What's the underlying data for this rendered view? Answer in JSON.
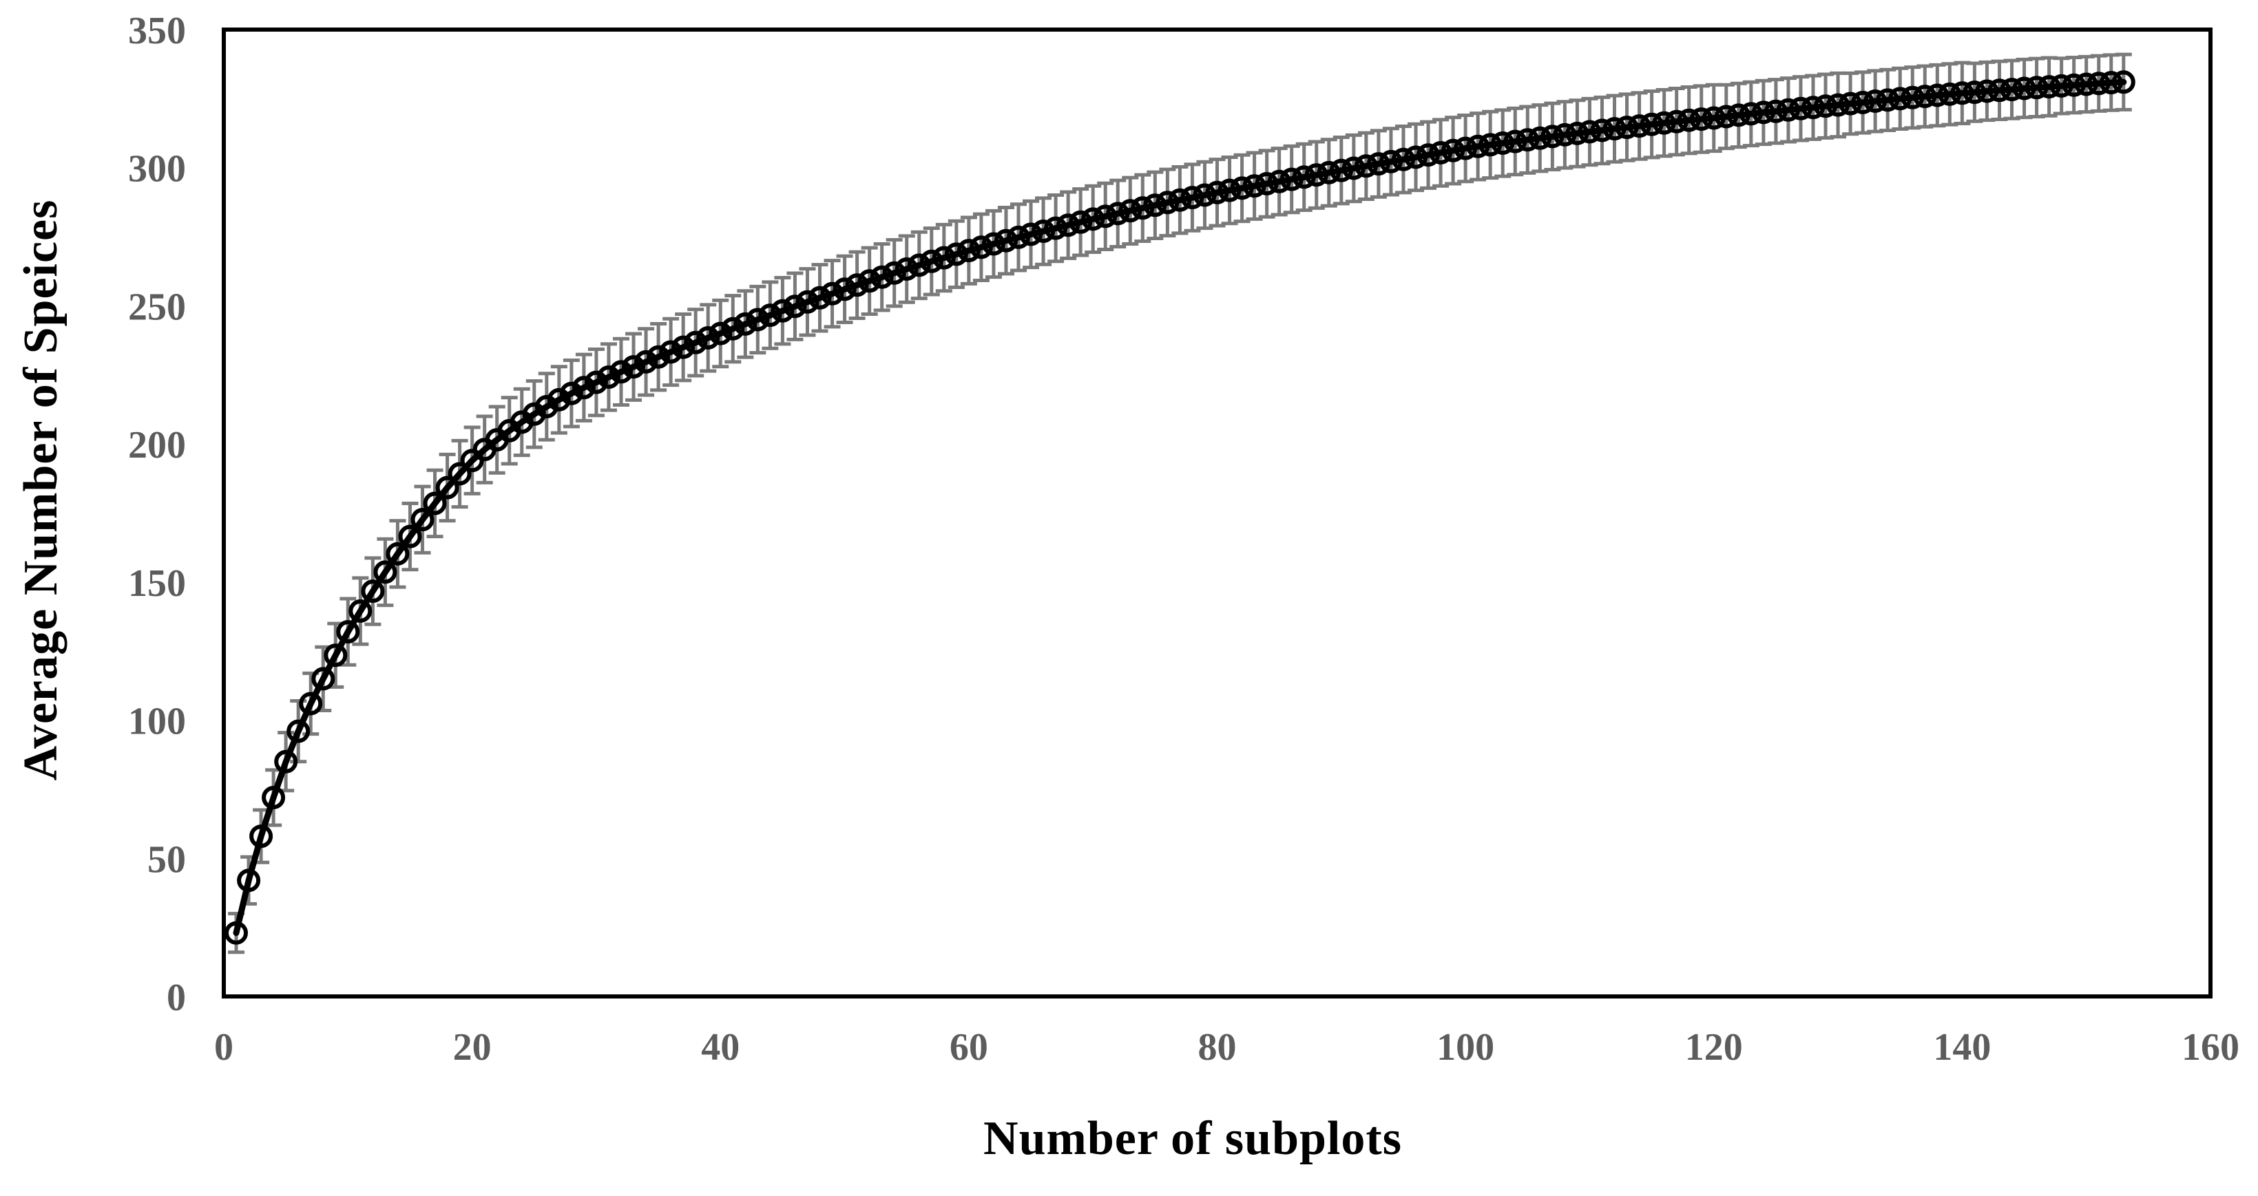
{
  "chart_data": {
    "type": "line",
    "title": "",
    "xlabel": "Number of subplots",
    "ylabel": "Average Number of Speices",
    "xlim": [
      0,
      160
    ],
    "ylim": [
      0,
      350
    ],
    "x_ticks": [
      0,
      20,
      40,
      60,
      80,
      100,
      120,
      140,
      160
    ],
    "y_ticks": [
      0,
      50,
      100,
      150,
      200,
      250,
      300,
      350
    ],
    "grid": false,
    "legend": "none",
    "marker": "open-circle",
    "series_name": "Average number of species",
    "x": {
      "start": 1,
      "step": 1
    },
    "values": [
      23,
      42,
      58,
      72,
      85,
      96,
      106,
      115,
      123.5,
      132,
      139.5,
      146.7,
      153.6,
      160.2,
      166.5,
      172.6,
      178.5,
      184.2,
      189.2,
      194,
      198,
      201.5,
      204.8,
      207.9,
      210.8,
      213.5,
      216,
      218.3,
      220.4,
      222.3,
      224.2,
      226.1,
      227.9,
      229.7,
      231.5,
      233.3,
      235,
      236.7,
      238.4,
      240,
      241.7,
      243.4,
      245,
      246.6,
      248.2,
      249.8,
      251.4,
      252.9,
      254.4,
      256,
      257.5,
      259,
      260.4,
      261.9,
      263.3,
      264.7,
      266.1,
      267.4,
      268.7,
      270,
      271.2,
      272.4,
      273.6,
      274.8,
      275.9,
      277,
      278.1,
      279.2,
      280.3,
      281.4,
      282.4,
      283.4,
      284.4,
      285.4,
      286.4,
      287.4,
      288.3,
      289.2,
      290.1,
      291,
      291.8,
      292.6,
      293.4,
      294.2,
      295,
      295.8,
      296.6,
      297.4,
      298.2,
      299,
      299.8,
      300.6,
      301.4,
      302.2,
      303,
      303.8,
      304.6,
      305.4,
      306.2,
      307,
      307.7,
      308.3,
      308.9,
      309.5,
      310.1,
      310.7,
      311.3,
      311.9,
      312.4,
      313,
      313.5,
      314.1,
      314.6,
      315.1,
      315.7,
      316.2,
      316.7,
      317.2,
      317.6,
      318,
      318.5,
      319,
      319.5,
      320,
      320.4,
      320.9,
      321.4,
      321.8,
      322.3,
      322.7,
      323.2,
      323.6,
      324.1,
      324.5,
      325,
      325.4,
      325.8,
      326.2,
      326.6,
      327,
      327.3,
      327.7,
      328,
      328.3,
      328.7,
      329,
      329.3,
      329.6,
      329.9,
      330.2,
      330.5,
      330.8,
      331
    ],
    "error_bars": [
      7,
      8.5,
      9.5,
      10,
      10.5,
      11,
      11,
      11.5,
      11.5,
      12,
      12,
      12,
      12,
      12,
      12,
      12,
      12,
      12,
      12,
      12,
      12,
      12,
      12,
      12,
      12,
      12,
      12,
      12,
      12,
      12,
      12,
      12,
      12,
      12,
      12,
      12,
      12,
      12,
      12,
      12,
      12,
      12,
      12,
      12,
      12,
      12,
      12,
      12,
      12,
      12,
      12,
      12,
      12,
      12,
      12,
      12,
      12,
      12,
      12,
      12,
      12,
      12,
      12,
      12,
      12,
      12,
      12,
      12,
      12,
      12,
      12,
      12,
      12,
      12,
      12,
      12,
      12,
      12,
      12,
      12,
      12,
      12,
      12,
      12,
      12,
      12,
      12,
      12,
      12,
      12,
      12,
      12,
      12,
      12,
      12,
      12,
      12,
      12,
      12,
      12,
      12,
      12,
      12,
      12,
      12,
      12,
      12,
      12,
      12,
      12,
      12,
      12,
      12,
      12,
      12,
      12,
      12,
      12,
      12,
      12,
      11.5,
      11.5,
      11.5,
      11.5,
      11.5,
      11.5,
      11.5,
      11.5,
      11.5,
      11.5,
      11,
      11,
      11,
      11,
      11,
      11,
      11,
      11,
      11,
      11,
      10.5,
      10.5,
      10.5,
      10.5,
      10.5,
      10.5,
      10.5,
      10,
      10,
      10,
      10,
      10,
      10
    ],
    "colors": {
      "line": "#000000",
      "marker_stroke": "#000000",
      "error_bar": "#7a7a7a",
      "tick_label": "#5c5c5c",
      "axis_title": "#000000",
      "plot_border": "#000000",
      "background": "#ffffff"
    }
  }
}
